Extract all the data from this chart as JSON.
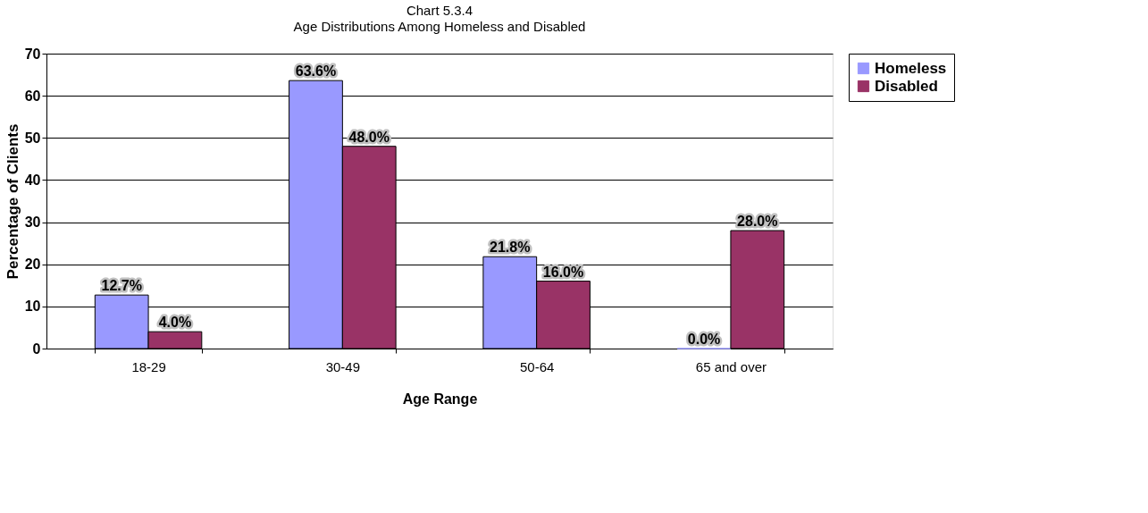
{
  "chart_data": {
    "type": "bar",
    "title": "Chart 5.3.4",
    "subtitle": "Age Distributions Among Homeless and Disabled",
    "xlabel": "Age Range",
    "ylabel": "Percentage of Clients",
    "categories": [
      "18-29",
      "30-49",
      "50-64",
      "65 and over"
    ],
    "series": [
      {
        "name": "Homeless",
        "color": "#9999ff",
        "values": [
          12.7,
          63.6,
          21.8,
          0.0
        ],
        "value_labels": [
          "12.7%",
          "63.6%",
          "21.8%",
          "0.0%"
        ]
      },
      {
        "name": "Disabled",
        "color": "#993366",
        "values": [
          4.0,
          48.0,
          16.0,
          28.0
        ],
        "value_labels": [
          "4.0%",
          "48.0%",
          "16.0%",
          "28.0%"
        ]
      }
    ],
    "ylim": [
      0,
      70
    ],
    "yticks": [
      0,
      10,
      20,
      30,
      40,
      50,
      60,
      70
    ],
    "grid": "y",
    "legend": "right"
  }
}
